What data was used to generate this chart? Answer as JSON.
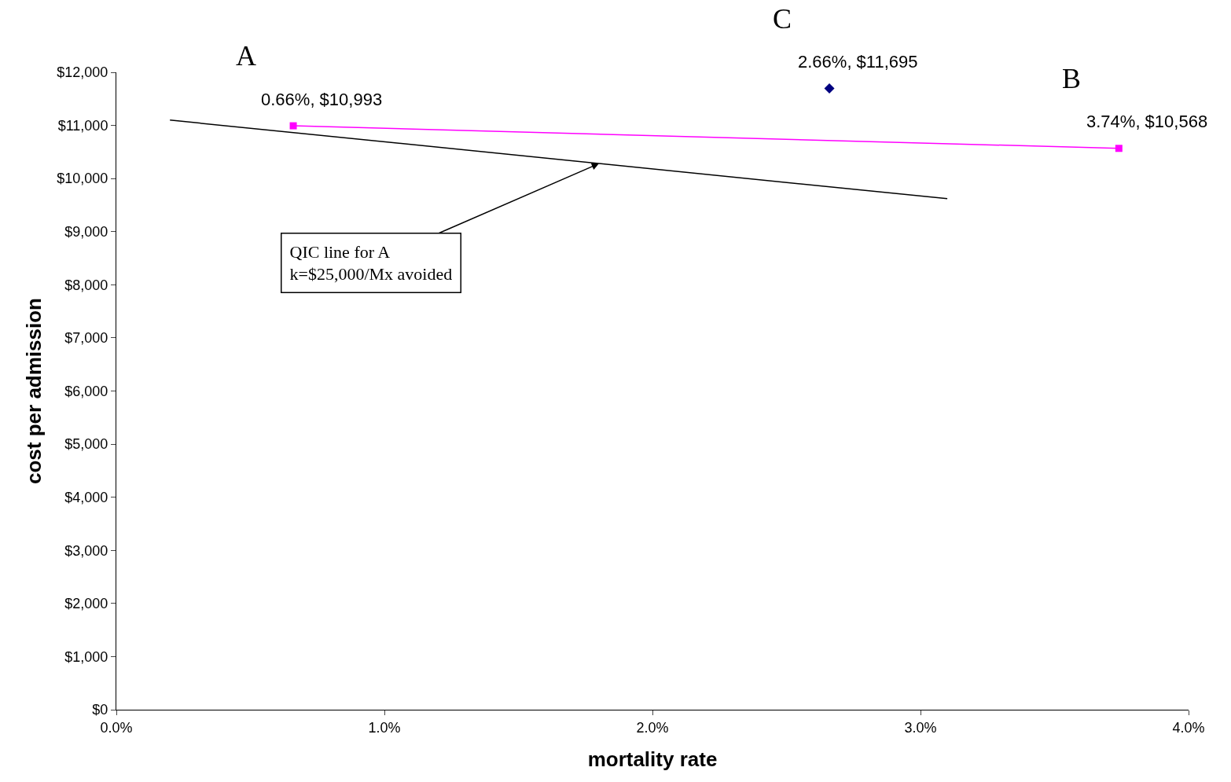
{
  "chart_data": {
    "type": "line",
    "xlabel": "mortality rate",
    "ylabel": "cost per admission",
    "xlim": [
      0,
      4
    ],
    "xticks": [
      {
        "value": 0,
        "label": "0.0%"
      },
      {
        "value": 1,
        "label": "1.0%"
      },
      {
        "value": 2,
        "label": "2.0%"
      },
      {
        "value": 3,
        "label": "3.0%"
      },
      {
        "value": 4,
        "label": "4.0%"
      }
    ],
    "ylim": [
      0,
      12000
    ],
    "yticks": [
      {
        "value": 0,
        "label": "$0"
      },
      {
        "value": 1000,
        "label": "$1,000"
      },
      {
        "value": 2000,
        "label": "$2,000"
      },
      {
        "value": 3000,
        "label": "$3,000"
      },
      {
        "value": 4000,
        "label": "$4,000"
      },
      {
        "value": 5000,
        "label": "$5,000"
      },
      {
        "value": 6000,
        "label": "$6,000"
      },
      {
        "value": 7000,
        "label": "$7,000"
      },
      {
        "value": 8000,
        "label": "$8,000"
      },
      {
        "value": 9000,
        "label": "$9,000"
      },
      {
        "value": 10000,
        "label": "$10,000"
      },
      {
        "value": 11000,
        "label": "$11,000"
      },
      {
        "value": 12000,
        "label": "$12,000"
      }
    ],
    "grid": false,
    "series": [
      {
        "color": "#ff00ff",
        "marker": "square",
        "x": [
          0.66,
          3.74
        ],
        "values": [
          10993,
          10568
        ],
        "value_labels": [
          "0.66%, $10,993",
          "3.74%, $10,568"
        ]
      },
      {
        "type": "scatter",
        "color": "#000080",
        "marker": "diamond",
        "x": [
          2.66
        ],
        "values": [
          11695
        ],
        "value_labels": [
          "2.66%, $11,695"
        ]
      },
      {
        "color": "#000000",
        "marker": "none",
        "x": [
          0.2,
          3.1
        ],
        "values": [
          11100,
          9620
        ]
      }
    ],
    "annotations": [
      {
        "text": "A",
        "x": 0.66,
        "y": 10993
      },
      {
        "text": "B",
        "x": 3.74,
        "y": 10568
      },
      {
        "text": "C",
        "x": 2.66,
        "y": 11695
      },
      {
        "text": "QIC line for A\nk=$25,000/Mx avoided",
        "x": 1.8,
        "y": 10280
      }
    ]
  }
}
